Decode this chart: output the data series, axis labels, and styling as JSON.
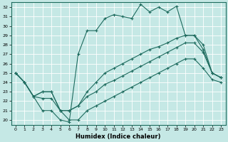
{
  "xlabel": "Humidex (Indice chaleur)",
  "xlim": [
    -0.5,
    23.5
  ],
  "ylim": [
    19.5,
    32.5
  ],
  "xticks": [
    0,
    1,
    2,
    3,
    4,
    5,
    6,
    7,
    8,
    9,
    10,
    11,
    12,
    13,
    14,
    15,
    16,
    17,
    18,
    19,
    20,
    21,
    22,
    23
  ],
  "yticks": [
    20,
    21,
    22,
    23,
    24,
    25,
    26,
    27,
    28,
    29,
    30,
    31,
    32
  ],
  "bg_color": "#c5e8e5",
  "line_color": "#1e6b5e",
  "grid_color": "#ffffff",
  "series": [
    {
      "x": [
        0,
        1,
        2,
        3,
        4,
        5,
        6,
        7,
        8,
        9,
        10,
        11,
        12,
        13,
        14,
        15,
        16,
        17,
        18,
        19,
        20,
        21,
        22,
        23
      ],
      "y": [
        25,
        24,
        22.5,
        21,
        21,
        20,
        19.8,
        27,
        29.5,
        29.5,
        30.8,
        31.2,
        31.0,
        30.8,
        32.3,
        31.5,
        32.0,
        31.5,
        32.1,
        29.0,
        29.0,
        27.5,
        25.0,
        24.5
      ]
    },
    {
      "x": [
        0,
        1,
        2,
        3,
        4,
        5,
        6,
        7,
        8,
        9,
        10,
        11,
        12,
        13,
        14,
        15,
        16,
        17,
        18,
        19,
        20,
        21,
        22,
        23
      ],
      "y": [
        25,
        24,
        22.5,
        23,
        23,
        21,
        21,
        21.5,
        23.0,
        24.0,
        25.0,
        25.5,
        26.0,
        26.5,
        27.0,
        27.5,
        27.8,
        28.2,
        28.7,
        29.0,
        29.0,
        28.0,
        25.0,
        24.5
      ]
    },
    {
      "x": [
        0,
        1,
        2,
        3,
        4,
        5,
        6,
        7,
        8,
        9,
        10,
        11,
        12,
        13,
        14,
        15,
        16,
        17,
        18,
        19,
        20,
        21,
        22,
        23
      ],
      "y": [
        25,
        24,
        22.5,
        23,
        23,
        21,
        21,
        21.5,
        22.5,
        23.0,
        23.8,
        24.2,
        24.7,
        25.2,
        25.7,
        26.2,
        26.7,
        27.2,
        27.7,
        28.2,
        28.2,
        27.2,
        25.0,
        24.5
      ]
    },
    {
      "x": [
        0,
        1,
        2,
        3,
        4,
        5,
        6,
        7,
        8,
        9,
        10,
        11,
        12,
        13,
        14,
        15,
        16,
        17,
        18,
        19,
        20,
        21,
        22,
        23
      ],
      "y": [
        25,
        24,
        22.5,
        22.3,
        22.3,
        21,
        20,
        20,
        21.0,
        21.5,
        22.0,
        22.5,
        23.0,
        23.5,
        24.0,
        24.5,
        25.0,
        25.5,
        26.0,
        26.5,
        26.5,
        25.5,
        24.3,
        24.0
      ]
    }
  ]
}
